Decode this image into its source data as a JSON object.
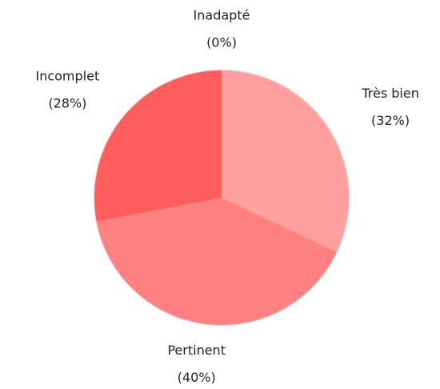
{
  "chart_data": {
    "type": "pie",
    "categories": [
      "Très bien",
      "Pertinent",
      "Incomplet",
      "Inadapté"
    ],
    "values": [
      32,
      40,
      28,
      0
    ],
    "value_labels": [
      "(32%)",
      "(40%)",
      "(28%)",
      "(0%)"
    ],
    "colors": [
      "#ff9f9f",
      "#ff8080",
      "#ff5c5c",
      "#ff3b3b"
    ]
  }
}
